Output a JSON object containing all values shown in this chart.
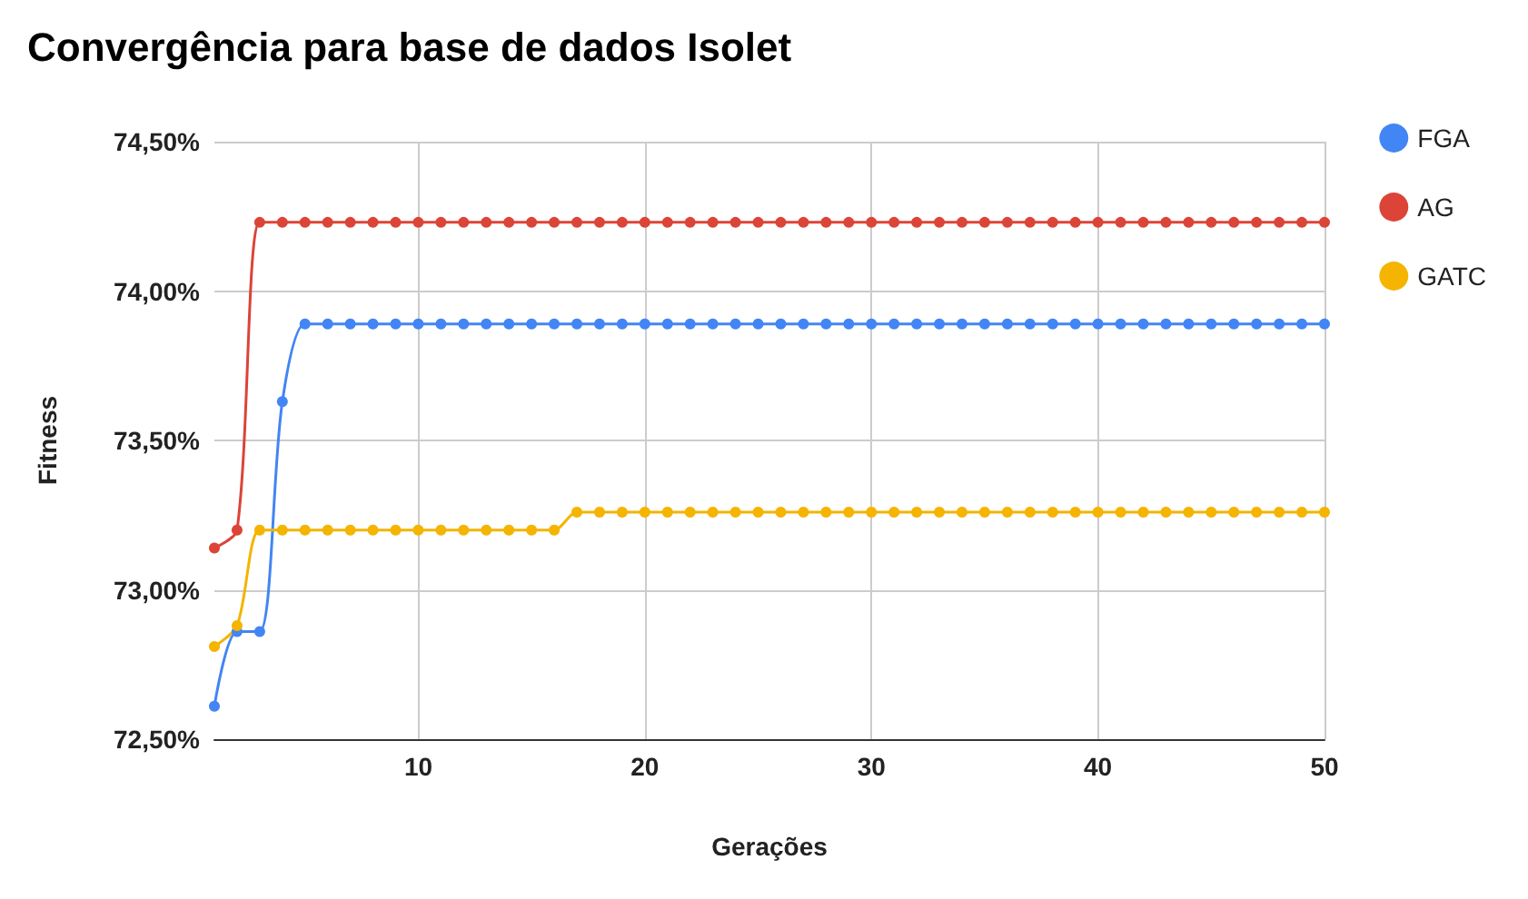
{
  "chart_data": {
    "type": "line",
    "title": "Convergência para base de dados Isolet",
    "xlabel": "Gerações",
    "ylabel": "Fitness",
    "x": [
      1,
      2,
      3,
      4,
      5,
      6,
      7,
      8,
      9,
      10,
      11,
      12,
      13,
      14,
      15,
      16,
      17,
      18,
      19,
      20,
      21,
      22,
      23,
      24,
      25,
      26,
      27,
      28,
      29,
      30,
      31,
      32,
      33,
      34,
      35,
      36,
      37,
      38,
      39,
      40,
      41,
      42,
      43,
      44,
      45,
      46,
      47,
      48,
      49,
      50
    ],
    "series": [
      {
        "name": "FGA",
        "color": "#4285f4",
        "values": [
          72.61,
          72.86,
          72.86,
          73.63,
          73.89,
          73.89,
          73.89,
          73.89,
          73.89,
          73.89,
          73.89,
          73.89,
          73.89,
          73.89,
          73.89,
          73.89,
          73.89,
          73.89,
          73.89,
          73.89,
          73.89,
          73.89,
          73.89,
          73.89,
          73.89,
          73.89,
          73.89,
          73.89,
          73.89,
          73.89,
          73.89,
          73.89,
          73.89,
          73.89,
          73.89,
          73.89,
          73.89,
          73.89,
          73.89,
          73.89,
          73.89,
          73.89,
          73.89,
          73.89,
          73.89,
          73.89,
          73.89,
          73.89,
          73.89,
          73.89
        ]
      },
      {
        "name": "AG",
        "color": "#db4437",
        "values": [
          73.14,
          73.2,
          74.23,
          74.23,
          74.23,
          74.23,
          74.23,
          74.23,
          74.23,
          74.23,
          74.23,
          74.23,
          74.23,
          74.23,
          74.23,
          74.23,
          74.23,
          74.23,
          74.23,
          74.23,
          74.23,
          74.23,
          74.23,
          74.23,
          74.23,
          74.23,
          74.23,
          74.23,
          74.23,
          74.23,
          74.23,
          74.23,
          74.23,
          74.23,
          74.23,
          74.23,
          74.23,
          74.23,
          74.23,
          74.23,
          74.23,
          74.23,
          74.23,
          74.23,
          74.23,
          74.23,
          74.23,
          74.23,
          74.23,
          74.23
        ]
      },
      {
        "name": "GATC",
        "color": "#f4b400",
        "values": [
          72.81,
          72.88,
          73.2,
          73.2,
          73.2,
          73.2,
          73.2,
          73.2,
          73.2,
          73.2,
          73.2,
          73.2,
          73.2,
          73.2,
          73.2,
          73.2,
          73.26,
          73.26,
          73.26,
          73.26,
          73.26,
          73.26,
          73.26,
          73.26,
          73.26,
          73.26,
          73.26,
          73.26,
          73.26,
          73.26,
          73.26,
          73.26,
          73.26,
          73.26,
          73.26,
          73.26,
          73.26,
          73.26,
          73.26,
          73.26,
          73.26,
          73.26,
          73.26,
          73.26,
          73.26,
          73.26,
          73.26,
          73.26,
          73.26,
          73.26
        ]
      }
    ],
    "xlim": [
      1,
      50
    ],
    "xticks": [
      10,
      20,
      30,
      40,
      50
    ],
    "ylim": [
      72.5,
      74.5
    ],
    "yticks": [
      {
        "value": 72.5,
        "label": "72,50%"
      },
      {
        "value": 73,
        "label": "73,00%"
      },
      {
        "value": 73.5,
        "label": "73,50%"
      },
      {
        "value": 74,
        "label": "74,00%"
      },
      {
        "value": 74.5,
        "label": "74,50%"
      }
    ],
    "grid": true,
    "legend": "top right",
    "marker": "circle",
    "line_style": "solid"
  }
}
